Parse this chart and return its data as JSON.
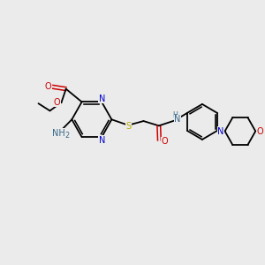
{
  "bg_color": "#ebebeb",
  "bond_color": "#000000",
  "colors": {
    "N": "#0000cc",
    "O": "#cc0000",
    "S": "#bbaa00",
    "NH": "#336688"
  },
  "figsize": [
    3.0,
    3.0
  ],
  "dpi": 100
}
